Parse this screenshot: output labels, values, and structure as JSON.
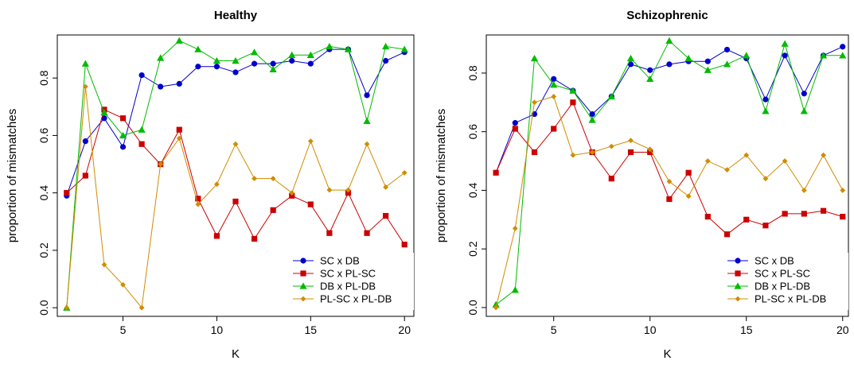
{
  "chart_data": [
    {
      "type": "line",
      "title": "Healthy",
      "xlabel": "K",
      "ylabel": "proportion of mismatches",
      "xlim": [
        1.5,
        20.5
      ],
      "ylim": [
        -0.03,
        0.95
      ],
      "xticks": [
        5,
        10,
        15,
        20
      ],
      "yticks": [
        0.0,
        0.2,
        0.4,
        0.6,
        0.8
      ],
      "x": [
        2,
        3,
        4,
        5,
        6,
        7,
        8,
        9,
        10,
        11,
        12,
        13,
        14,
        15,
        16,
        17,
        18,
        19,
        20
      ],
      "legend_position": "bottom-right",
      "series": [
        {
          "name": "SC x DB",
          "color": "#0000cc",
          "marker": "circle",
          "values": [
            0.39,
            0.58,
            0.66,
            0.56,
            0.81,
            0.77,
            0.78,
            0.84,
            0.84,
            0.82,
            0.85,
            0.85,
            0.86,
            0.85,
            0.9,
            0.9,
            0.74,
            0.86,
            0.89
          ]
        },
        {
          "name": "SC x PL-SC",
          "color": "#cc0000",
          "marker": "square",
          "values": [
            0.4,
            0.46,
            0.69,
            0.66,
            0.57,
            0.5,
            0.62,
            0.38,
            0.25,
            0.37,
            0.24,
            0.34,
            0.39,
            0.36,
            0.26,
            0.4,
            0.26,
            0.32,
            0.22
          ]
        },
        {
          "name": "DB x PL-DB",
          "color": "#00bb00",
          "marker": "triangle",
          "values": [
            0.0,
            0.85,
            0.68,
            0.6,
            0.62,
            0.87,
            0.93,
            0.9,
            0.86,
            0.86,
            0.89,
            0.83,
            0.88,
            0.88,
            0.91,
            0.9,
            0.65,
            0.91,
            0.9
          ]
        },
        {
          "name": "PL-SC x PL-DB",
          "color": "#d08c00",
          "marker": "diamond",
          "values": [
            0.0,
            0.77,
            0.15,
            0.08,
            0.0,
            0.5,
            0.59,
            0.36,
            0.43,
            0.57,
            0.45,
            0.45,
            0.4,
            0.58,
            0.41,
            0.41,
            0.57,
            0.42,
            0.47
          ]
        }
      ]
    },
    {
      "type": "line",
      "title": "Schizophrenic",
      "xlabel": "K",
      "ylabel": "proportion of mismatches",
      "xlim": [
        1.5,
        20.3
      ],
      "ylim": [
        -0.03,
        0.93
      ],
      "xticks": [
        5,
        10,
        15,
        20
      ],
      "yticks": [
        0.0,
        0.2,
        0.4,
        0.6,
        0.8
      ],
      "x": [
        2,
        3,
        4,
        5,
        6,
        7,
        8,
        9,
        10,
        11,
        12,
        13,
        14,
        15,
        16,
        17,
        18,
        19,
        20
      ],
      "legend_position": "bottom-right",
      "series": [
        {
          "name": "SC x DB",
          "color": "#0000cc",
          "marker": "circle",
          "values": [
            0.46,
            0.63,
            0.66,
            0.78,
            0.74,
            0.66,
            0.72,
            0.83,
            0.81,
            0.83,
            0.84,
            0.84,
            0.88,
            0.85,
            0.71,
            0.86,
            0.73,
            0.86,
            0.89
          ]
        },
        {
          "name": "SC x PL-SC",
          "color": "#cc0000",
          "marker": "square",
          "values": [
            0.46,
            0.61,
            0.53,
            0.61,
            0.7,
            0.53,
            0.44,
            0.53,
            0.53,
            0.37,
            0.46,
            0.31,
            0.25,
            0.3,
            0.28,
            0.32,
            0.32,
            0.33,
            0.31
          ]
        },
        {
          "name": "DB x PL-DB",
          "color": "#00bb00",
          "marker": "triangle",
          "values": [
            0.01,
            0.06,
            0.85,
            0.76,
            0.74,
            0.64,
            0.72,
            0.85,
            0.78,
            0.91,
            0.85,
            0.81,
            0.83,
            0.86,
            0.67,
            0.9,
            0.67,
            0.86,
            0.86
          ]
        },
        {
          "name": "PL-SC x PL-DB",
          "color": "#d08c00",
          "marker": "diamond",
          "values": [
            0.0,
            0.27,
            0.7,
            0.72,
            0.52,
            0.53,
            0.55,
            0.57,
            0.54,
            0.43,
            0.38,
            0.5,
            0.47,
            0.52,
            0.44,
            0.5,
            0.4,
            0.52,
            0.4
          ]
        }
      ]
    }
  ]
}
